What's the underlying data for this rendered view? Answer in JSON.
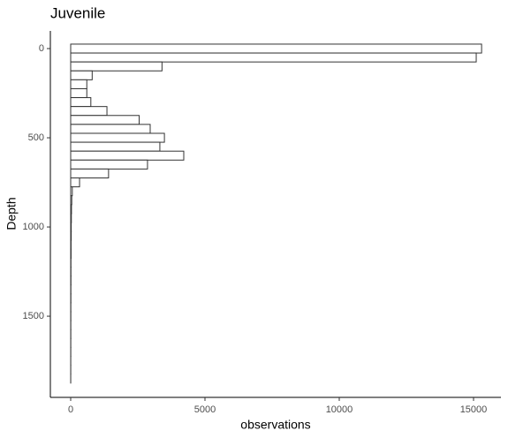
{
  "chart_data": {
    "type": "histogram",
    "orientation": "horizontal",
    "title": "Juvenile",
    "x_label": "observations",
    "y_label": "Depth",
    "bins": [
      -25,
      25,
      75,
      125,
      175,
      225,
      275,
      325,
      375,
      425,
      475,
      525,
      575,
      625,
      675,
      725,
      775,
      825,
      875,
      925,
      975,
      1025,
      1075,
      1125,
      1175,
      1225,
      1275,
      1325,
      1375,
      1425,
      1475,
      1525,
      1575,
      1625,
      1675,
      1725,
      1775,
      1825,
      1875
    ],
    "counts": [
      15300,
      15100,
      3400,
      800,
      600,
      600,
      750,
      1350,
      2550,
      2960,
      3490,
      3320,
      4210,
      2860,
      1410,
      330,
      60,
      40,
      30,
      25,
      20,
      20,
      15,
      15,
      10,
      10,
      10,
      8,
      8,
      6,
      6,
      5,
      5,
      4,
      4,
      3,
      3,
      2
    ],
    "fill": "#ffffff",
    "edge_color": "#333333",
    "xlim": [
      -757,
      16020
    ],
    "xticks": [
      0,
      5000,
      10000,
      15000
    ],
    "ylim": [
      -99,
      1955
    ],
    "y_reversed": true,
    "yticks": [
      0,
      500,
      1000,
      1500
    ]
  }
}
